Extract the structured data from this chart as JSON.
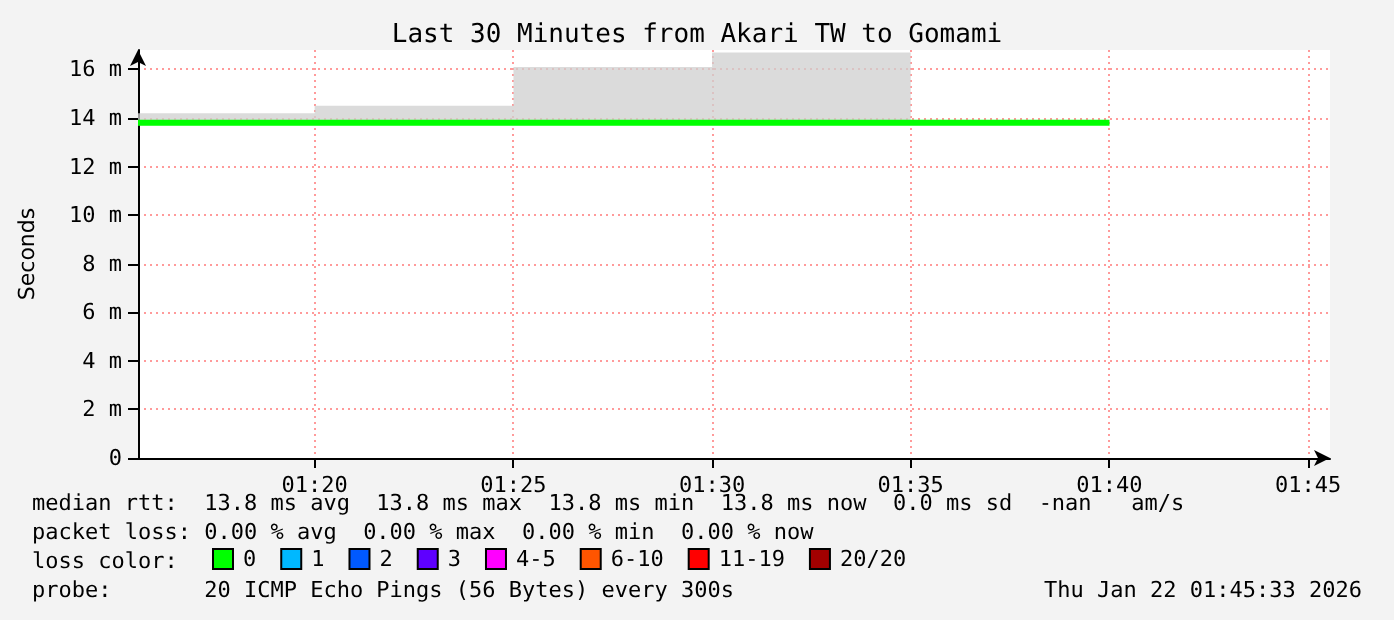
{
  "chart_data": {
    "type": "line",
    "title": "Last 30 Minutes from Akari TW to Gomami",
    "ylabel": "Seconds",
    "xlim": [
      1.2592,
      1.7592
    ],
    "xticks": [
      {
        "value": 1.3333,
        "label": "01:20"
      },
      {
        "value": 1.4167,
        "label": "01:25"
      },
      {
        "value": 1.5,
        "label": "01:30"
      },
      {
        "value": 1.5833,
        "label": "01:35"
      },
      {
        "value": 1.6667,
        "label": "01:40"
      },
      {
        "value": 1.75,
        "label": "01:45"
      }
    ],
    "ylim": [
      0,
      16.8
    ],
    "yticks": [
      0,
      {
        "value": 2,
        "label": "2 m"
      },
      {
        "value": 4,
        "label": "4 m"
      },
      {
        "value": 6,
        "label": "6 m"
      },
      {
        "value": 8,
        "label": "8 m"
      },
      {
        "value": 10,
        "label": "10 m"
      },
      {
        "value": 12,
        "label": "12 m"
      },
      {
        "value": 14,
        "label": "14 m"
      },
      {
        "value": 16,
        "label": "16 m"
      }
    ],
    "grid": true,
    "legend": "bottom",
    "legend_title": "loss color:",
    "series": [
      {
        "name": "0",
        "color": "#00ff00",
        "x": [
          1.2592,
          1.3333,
          1.3333,
          1.4167,
          1.4167,
          1.5,
          1.5,
          1.5833,
          1.5833,
          1.6667
        ],
        "values": [
          13.8,
          13.8,
          13.8,
          13.8,
          13.8,
          13.8,
          13.8,
          13.8,
          13.8,
          13.8
        ],
        "lower": [
          13.7,
          13.7,
          13.7,
          13.7,
          13.7,
          13.7,
          13.7,
          13.7,
          null,
          null
        ],
        "upper": [
          14.2,
          14.2,
          14.5,
          14.5,
          16.1,
          16.1,
          16.7,
          16.7,
          null,
          null
        ]
      },
      {
        "name": "1",
        "color": "#00b8ff",
        "values": [
          null,
          null,
          null,
          null,
          null,
          null
        ]
      },
      {
        "name": "2",
        "color": "#0059ff",
        "values": [
          null,
          null,
          null,
          null,
          null,
          null
        ]
      },
      {
        "name": "3",
        "color": "#5e00ff",
        "values": [
          null,
          null,
          null,
          null,
          null,
          null
        ]
      },
      {
        "name": "4-5",
        "color": "#ff00ff",
        "values": [
          null,
          null,
          null,
          null,
          null,
          null
        ]
      },
      {
        "name": "6-10",
        "color": "#ff5500",
        "values": [
          null,
          null,
          null,
          null,
          null,
          null
        ]
      },
      {
        "name": "11-19",
        "color": "#ff0000",
        "values": [
          null,
          null,
          null,
          null,
          null,
          null
        ]
      },
      {
        "name": "20/20",
        "color": "#a10000",
        "values": [
          null,
          null,
          null,
          null,
          null,
          null
        ]
      }
    ],
    "annotations": [
      "median rtt:  13.8 ms avg  13.8 ms max  13.8 ms min  13.8 ms now  0.0 ms sd  -nan   am/s",
      "packet loss: 0.00 % avg  0.00 % max  0.00 % min  0.00 % now",
      "probe:       20 ICMP Echo Pings (56 Bytes) every 300s",
      "Thu Jan 22 01:45:33 2026"
    ]
  }
}
